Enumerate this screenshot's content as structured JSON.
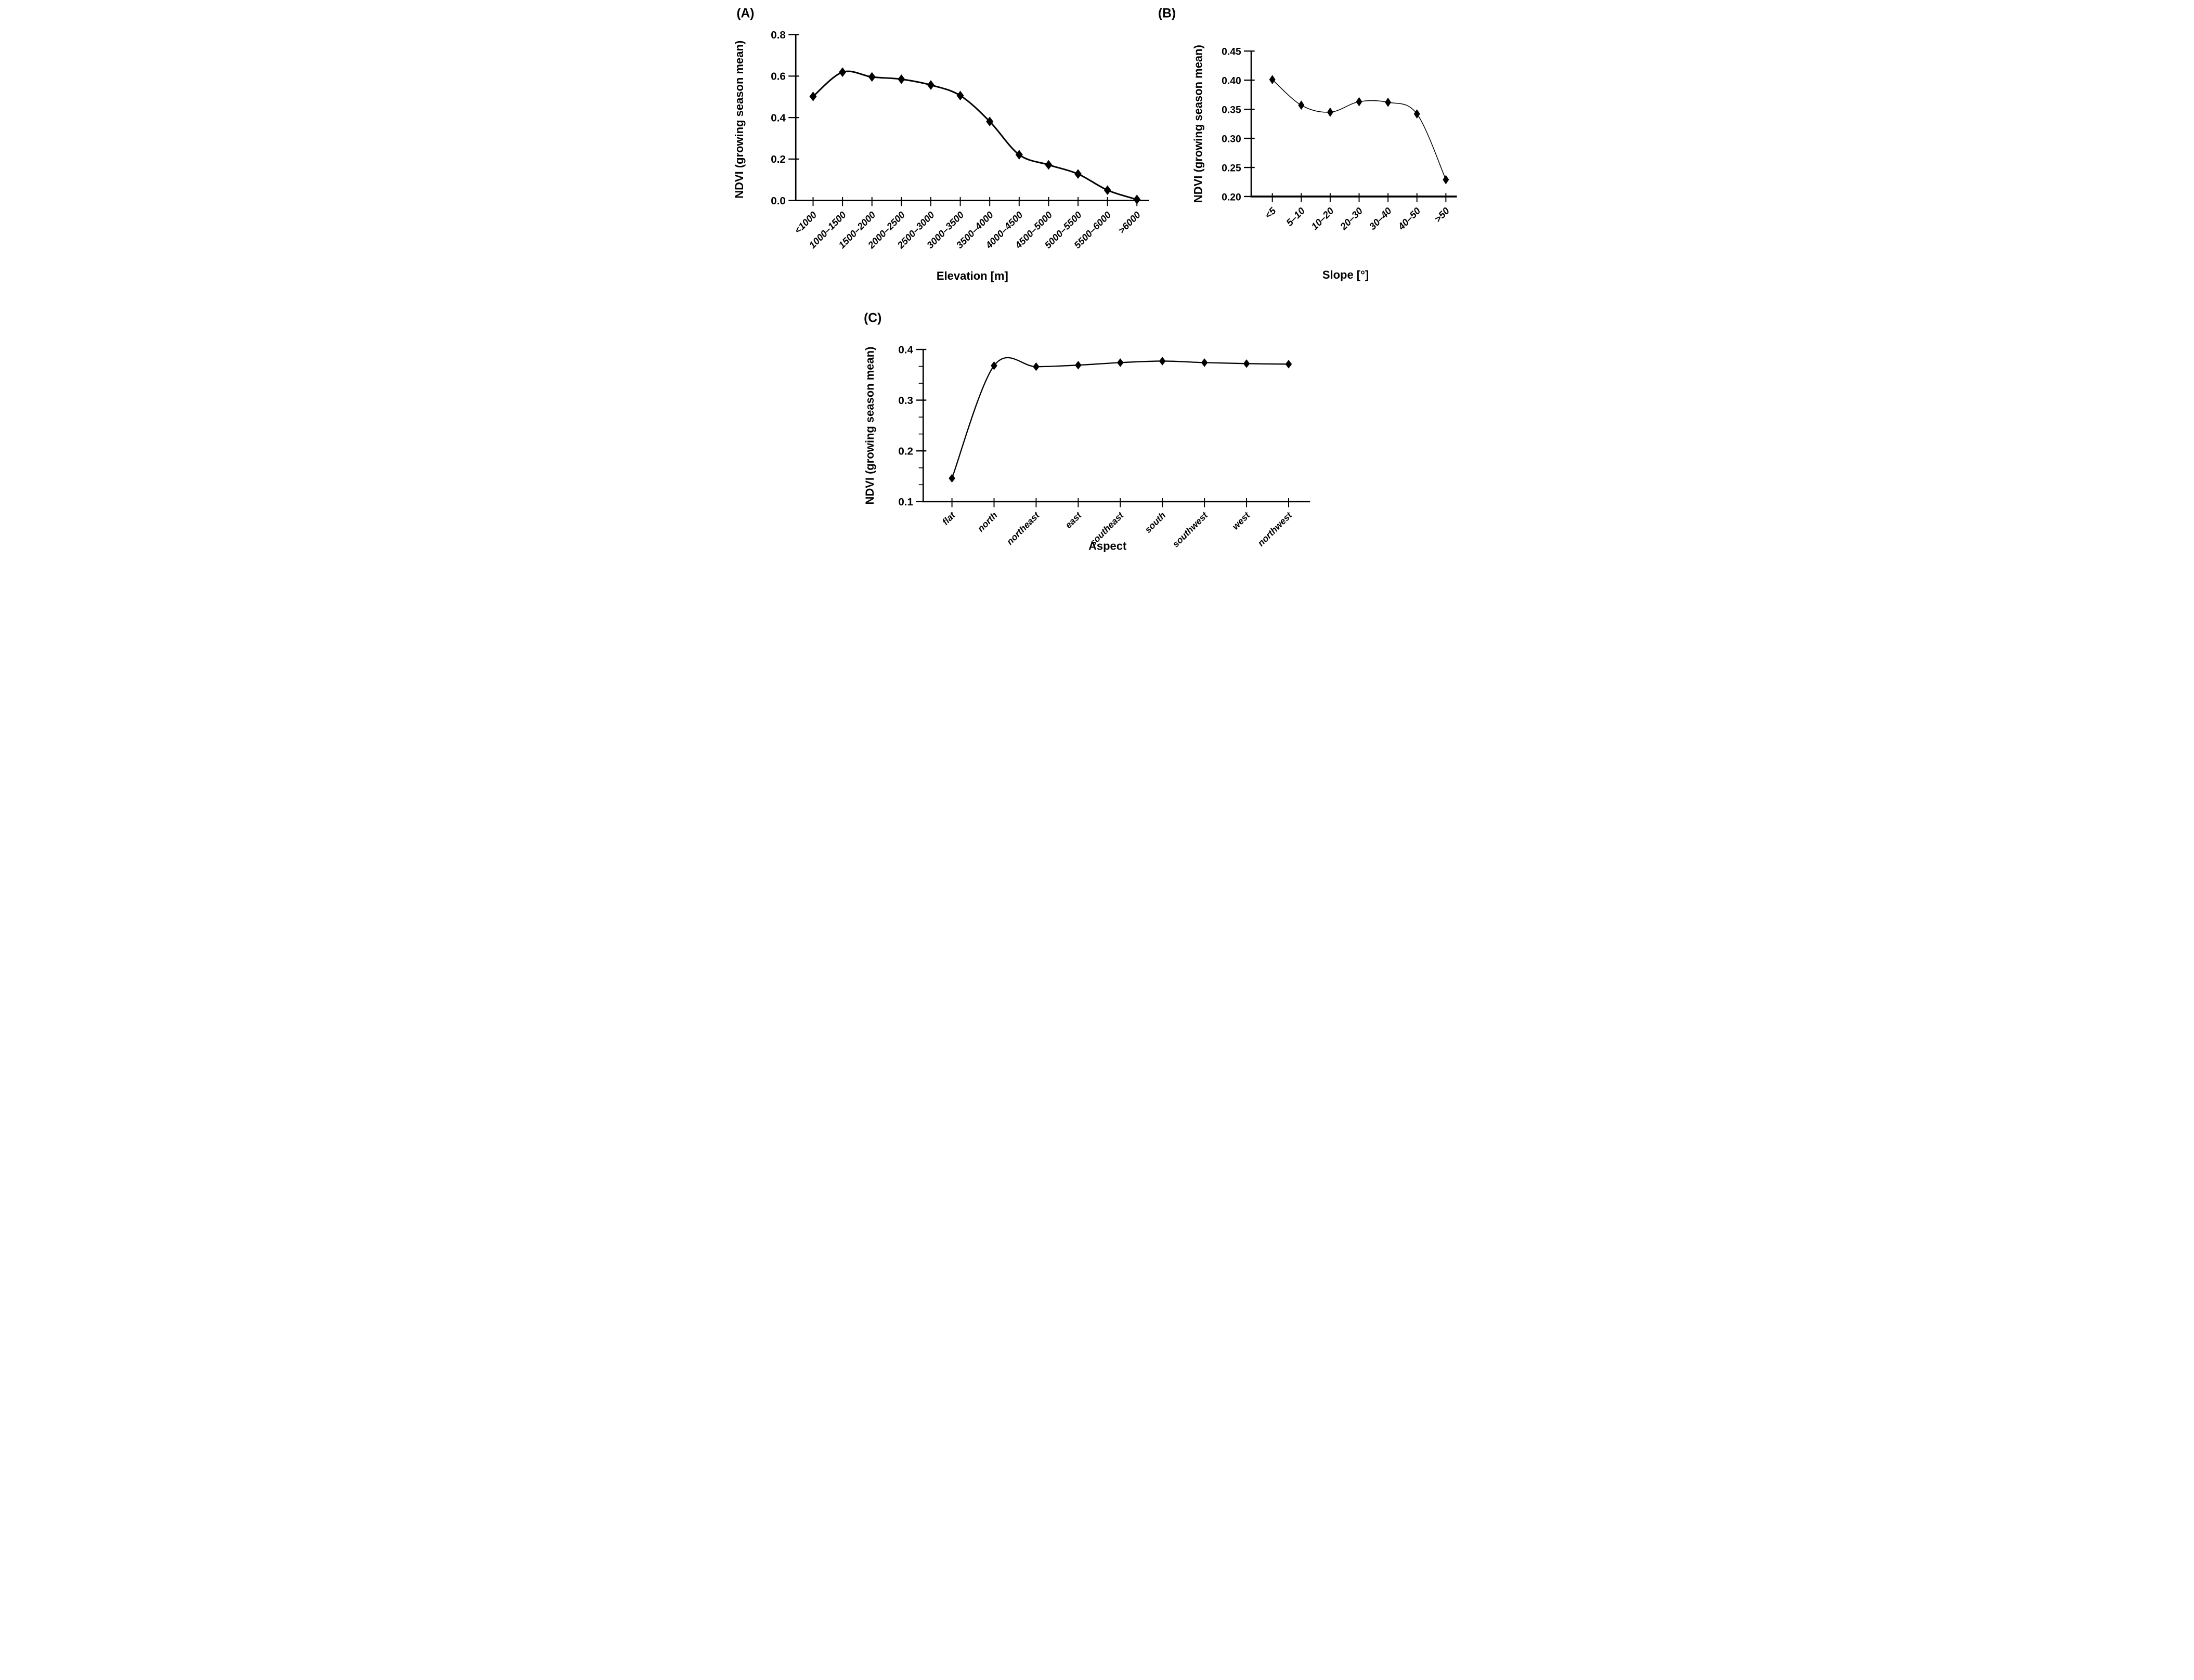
{
  "figure": {
    "background_color": "#ffffff",
    "ink_color": "#000000",
    "description_visible_text_only": true
  },
  "chart_data": [
    {
      "type": "line",
      "panel_label": "(A)",
      "xlabel": "Elevation [m]",
      "ylabel": "NDVI (growing season mean)",
      "categories": [
        "<1000",
        "1000–1500",
        "1500–2000",
        "2000–2500",
        "2500–3000",
        "3000–3500",
        "3500–4000",
        "4000–4500",
        "4500–5000",
        "5000–5500",
        "5500–6000",
        ">6000"
      ],
      "values": [
        0.502,
        0.619,
        0.596,
        0.585,
        0.557,
        0.506,
        0.381,
        0.221,
        0.172,
        0.128,
        0.05,
        0.005
      ],
      "ylim": [
        0.0,
        0.8
      ],
      "yticks": [
        0.0,
        0.2,
        0.4,
        0.6,
        0.8
      ],
      "ytick_labels": [
        "0.0",
        "0.2",
        "0.4",
        "0.6",
        "0.8"
      ],
      "y_minor_divisions": 1,
      "grid": false,
      "legend": null,
      "marker": "diamond",
      "series_color": "#000000"
    },
    {
      "type": "line",
      "panel_label": "(B)",
      "xlabel": "Slope [°]",
      "ylabel": "NDVI (growing season mean)",
      "categories": [
        "<5",
        "5–10",
        "10–20",
        "20–30",
        "30–40",
        "40–50",
        ">50"
      ],
      "values": [
        0.401,
        0.357,
        0.345,
        0.363,
        0.362,
        0.342,
        0.229
      ],
      "ylim": [
        0.2,
        0.45
      ],
      "yticks": [
        0.2,
        0.25,
        0.3,
        0.35,
        0.4,
        0.45
      ],
      "ytick_labels": [
        "0.20",
        "0.25",
        "0.30",
        "0.35",
        "0.40",
        "0.45"
      ],
      "y_minor_divisions": 1,
      "grid": false,
      "legend": null,
      "marker": "diamond",
      "series_color": "#000000"
    },
    {
      "type": "line",
      "panel_label": "(C)",
      "xlabel": "Aspect",
      "ylabel": "NDVI (growing season mean)",
      "categories": [
        "flat",
        "north",
        "northeast",
        "east",
        "southeast",
        "south",
        "southwest",
        "west",
        "northwest"
      ],
      "values": [
        0.146,
        0.368,
        0.366,
        0.369,
        0.374,
        0.377,
        0.374,
        0.372,
        0.371
      ],
      "ylim": [
        0.1,
        0.4
      ],
      "yticks": [
        0.1,
        0.2,
        0.3,
        0.4
      ],
      "ytick_labels": [
        "0.1",
        "0.2",
        "0.3",
        "0.4"
      ],
      "y_minor_divisions": 3,
      "grid": false,
      "legend": null,
      "marker": "diamond",
      "series_color": "#000000"
    }
  ]
}
